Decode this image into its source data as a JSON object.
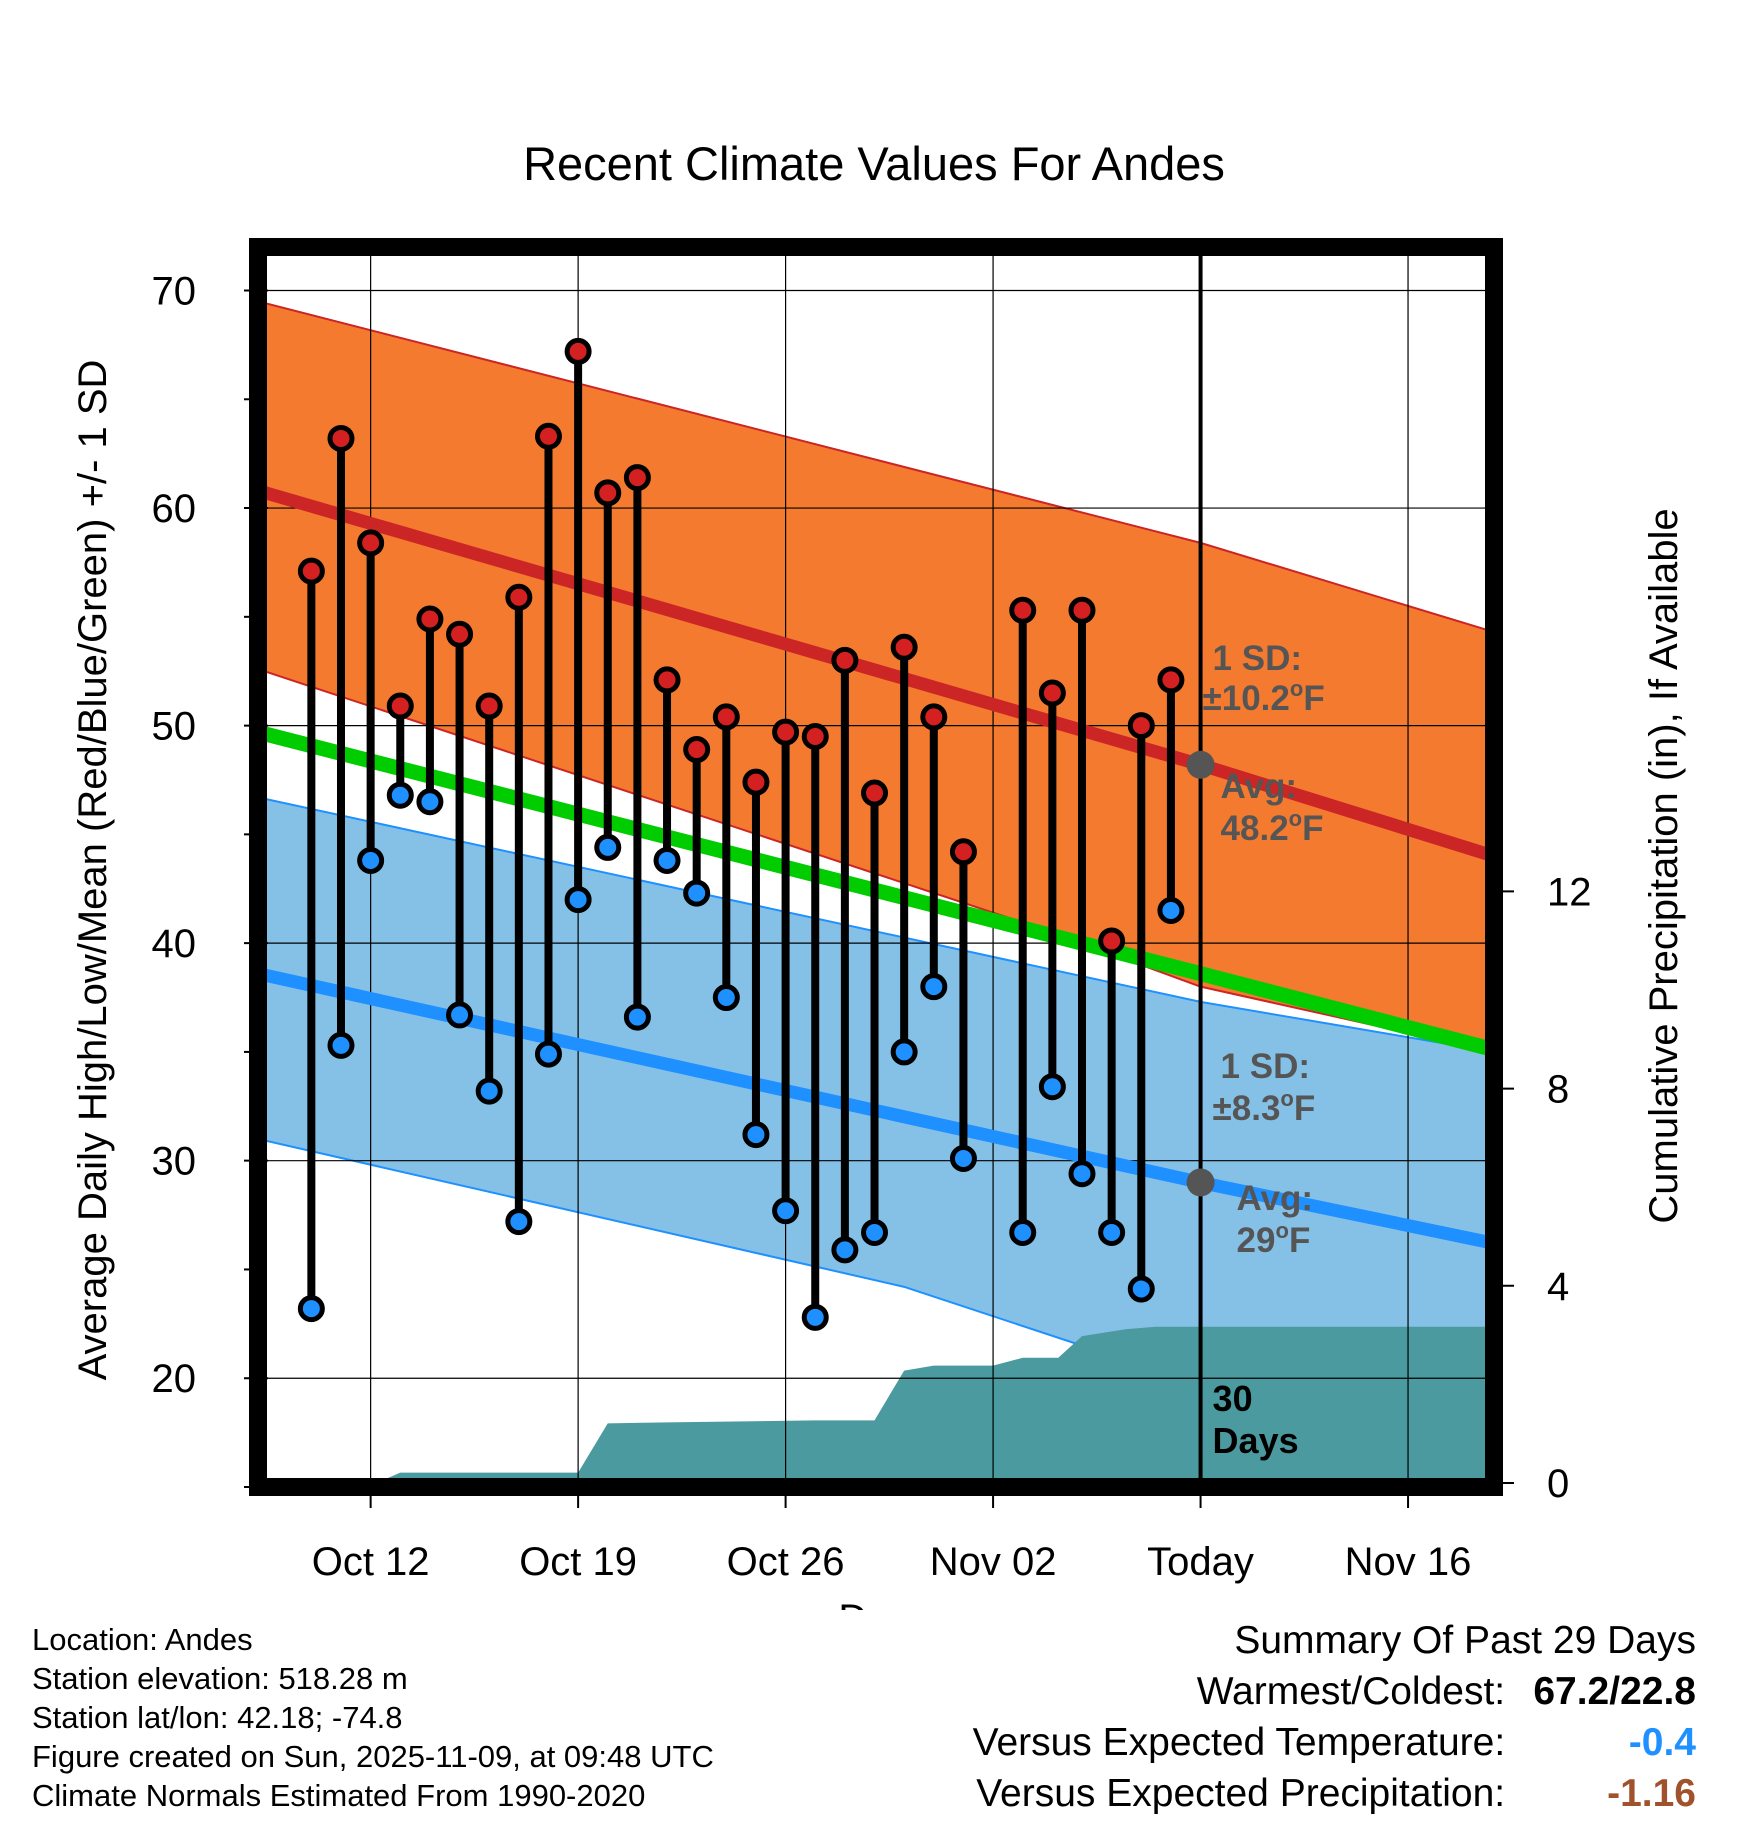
{
  "chart_data": {
    "type": "line",
    "title": "Recent Climate Values For Andes",
    "xlabel": "Day",
    "ylabel": "Average Daily High/Low/Mean (Red/Blue/Green) +/- 1 SD",
    "y2label": "Cumulative Precipitation (in), If Available",
    "ylim": [
      15,
      72
    ],
    "y_ticks": [
      "20",
      "30",
      "40",
      "50",
      "60",
      "70"
    ],
    "y2lim": [
      0,
      20
    ],
    "y2_ticks": [
      "0",
      "4",
      "8",
      "12"
    ],
    "x_range_days": [
      -1.8,
      39.9
    ],
    "x_ticks": [
      {
        "day": 2,
        "label": "Oct 12"
      },
      {
        "day": 9,
        "label": "Oct 19"
      },
      {
        "day": 16,
        "label": "Oct 26"
      },
      {
        "day": 23,
        "label": "Nov 02"
      },
      {
        "day": 30,
        "label": "Today"
      },
      {
        "day": 37,
        "label": "Nov 16"
      }
    ],
    "today_day": 30,
    "today_label": [
      "30",
      "Days"
    ],
    "normals": {
      "high_mean": [
        [
          -1.8,
          60.8
        ],
        [
          30,
          48.2
        ],
        [
          39.9,
          44.0
        ]
      ],
      "high_upper": [
        [
          -1.8,
          69.5
        ],
        [
          30,
          58.4
        ],
        [
          39.9,
          54.3
        ]
      ],
      "high_lower": [
        [
          -1.8,
          52.6
        ],
        [
          25,
          40.5
        ],
        [
          30,
          38.0
        ],
        [
          39.9,
          35.0
        ]
      ],
      "low_mean": [
        [
          -1.8,
          38.6
        ],
        [
          30,
          29.0
        ],
        [
          39.9,
          26.2
        ]
      ],
      "low_upper": [
        [
          -1.8,
          46.7
        ],
        [
          30,
          37.3
        ],
        [
          39.9,
          35.0
        ]
      ],
      "low_lower": [
        [
          -1.8,
          31.0
        ],
        [
          20,
          24.2
        ],
        [
          26,
          21.5
        ],
        [
          30,
          20.4
        ],
        [
          39.9,
          19.4
        ]
      ],
      "mean": [
        [
          -1.8,
          49.7
        ],
        [
          30,
          38.6
        ],
        [
          39.9,
          35.1
        ]
      ]
    },
    "annotations": {
      "high_sd": [
        "1 SD:",
        "±10.2°F"
      ],
      "high_avg": [
        "Avg:",
        "48.2°F"
      ],
      "low_sd": [
        "1 SD:",
        "±8.3°F"
      ],
      "low_avg": [
        "Avg:",
        "29°F"
      ],
      "high_avg_value": 48.2,
      "low_avg_value": 29.0
    },
    "series": [
      {
        "name": "High",
        "color": "#d42020",
        "x": [
          0,
          1,
          2,
          3,
          4,
          5,
          6,
          7,
          8,
          9,
          10,
          11,
          12,
          13,
          14,
          15,
          16,
          17,
          18,
          19,
          20,
          21,
          22,
          24,
          25,
          26,
          27,
          28,
          29
        ],
        "values": [
          57.1,
          63.2,
          58.4,
          50.9,
          54.9,
          54.2,
          50.9,
          55.9,
          63.3,
          67.2,
          60.7,
          61.4,
          52.1,
          48.9,
          50.4,
          47.4,
          49.7,
          49.5,
          53.0,
          46.9,
          53.6,
          50.4,
          44.2,
          55.3,
          51.5,
          55.3,
          40.1,
          50.0,
          52.1
        ]
      },
      {
        "name": "Low",
        "color": "#1e90ff",
        "x": [
          0,
          1,
          2,
          3,
          4,
          5,
          6,
          7,
          8,
          9,
          10,
          11,
          12,
          13,
          14,
          15,
          16,
          17,
          18,
          19,
          20,
          21,
          22,
          24,
          25,
          26,
          27,
          28,
          29
        ],
        "values": [
          23.2,
          35.3,
          43.8,
          46.8,
          46.5,
          36.7,
          33.2,
          27.2,
          34.9,
          42.0,
          44.4,
          36.6,
          43.8,
          42.3,
          37.5,
          31.2,
          27.7,
          22.8,
          25.9,
          26.7,
          35.0,
          38.0,
          30.1,
          26.7,
          33.4,
          29.4,
          26.7,
          24.1,
          41.5
        ]
      },
      {
        "name": "Cumulative Precipitation",
        "color": "#4a9aa0",
        "points": [
          [
            -1.8,
            0
          ],
          [
            0.8,
            0
          ],
          [
            1.0,
            0
          ],
          [
            2.2,
            0
          ],
          [
            3.0,
            0.21
          ],
          [
            9.0,
            0.21
          ],
          [
            10.0,
            1.21
          ],
          [
            12.0,
            1.23
          ],
          [
            17.0,
            1.27
          ],
          [
            19.0,
            1.27
          ],
          [
            20.0,
            2.28
          ],
          [
            21.0,
            2.38
          ],
          [
            23.0,
            2.38
          ],
          [
            24.0,
            2.54
          ],
          [
            25.2,
            2.54
          ],
          [
            26.0,
            2.98
          ],
          [
            27.5,
            3.12
          ],
          [
            28.5,
            3.17
          ],
          [
            30.0,
            3.17
          ],
          [
            39.9,
            3.17
          ]
        ]
      }
    ]
  },
  "info": {
    "location": "Location: Andes",
    "elevation": "Station elevation: 518.28 m",
    "latlon": "Station lat/lon: 42.18; -74.8",
    "created": "Figure created on Sun, 2025-11-09, at 09:48 UTC",
    "normals": "Climate Normals Estimated From 1990-2020"
  },
  "summary": {
    "title": "Summary Of Past 29 Days",
    "warm_label": "Warmest/Coldest:",
    "warm_value": "67.2/22.8",
    "temp_label": "Versus Expected Temperature:",
    "temp_value": "-0.4",
    "temp_color": "#1e90ff",
    "precip_label": "Versus Expected Precipitation:",
    "precip_value": "-1.16",
    "precip_color": "#a0522d"
  },
  "colors": {
    "high_band": "#f47a30",
    "low_band": "#85c1e6",
    "high_line": "#cc2525",
    "low_line": "#1e90ff",
    "mean_line": "#00cc00",
    "precip": "#4a9aa0",
    "annotation": "#555555"
  }
}
